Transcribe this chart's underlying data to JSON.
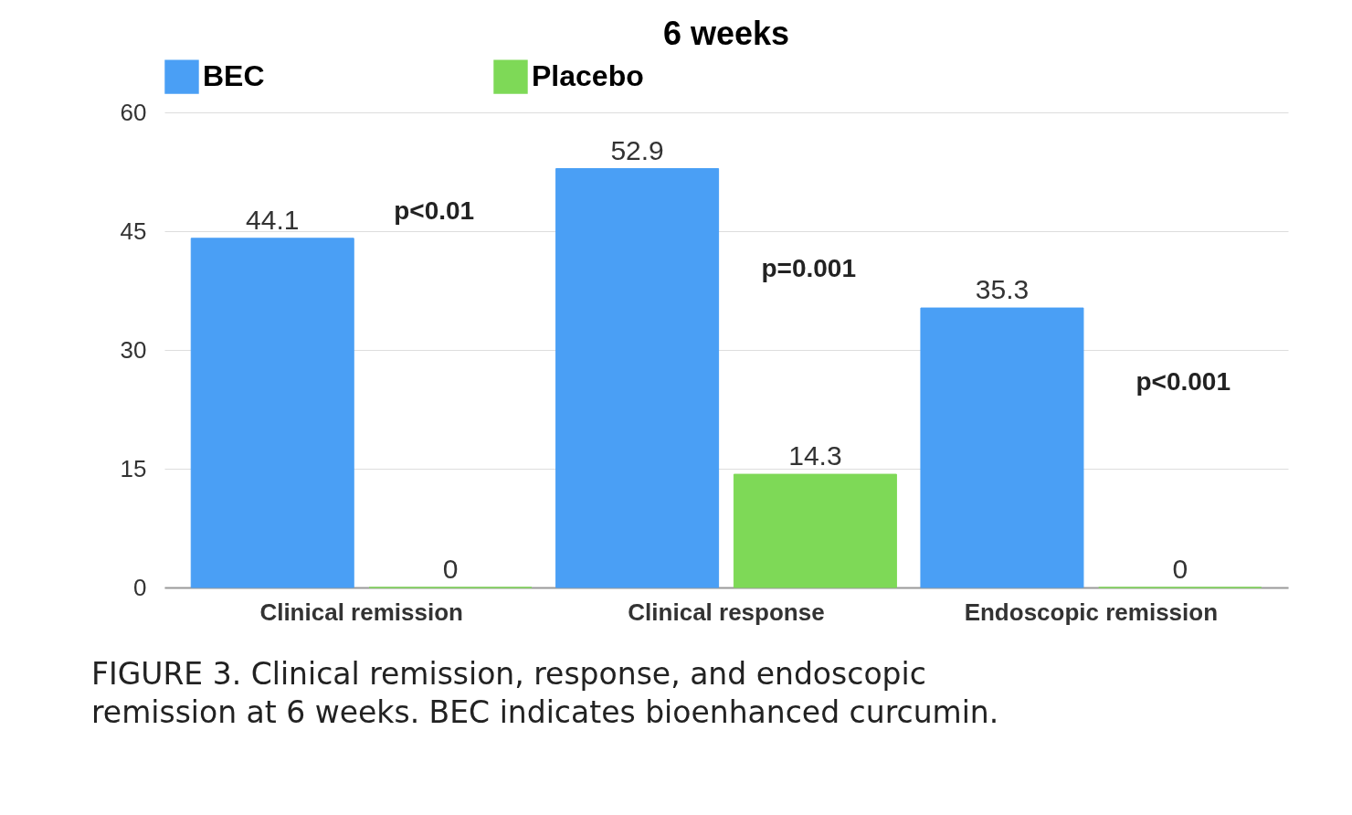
{
  "chart_data": {
    "type": "bar",
    "title": "6 weeks",
    "categories": [
      "Clinical remission",
      "Clinical response",
      "Endoscopic remission"
    ],
    "series": [
      {
        "name": "BEC",
        "color": "#4a9ff5",
        "values": [
          44.1,
          52.9,
          35.3
        ]
      },
      {
        "name": "Placebo",
        "color": "#7ed957",
        "values": [
          0,
          14.3,
          0
        ]
      }
    ],
    "ylim": [
      0,
      60
    ],
    "yticks": [
      0,
      15,
      30,
      45,
      60
    ],
    "grid": "y",
    "legend": "top",
    "data_labels": true,
    "annotations": [
      "p<0.01",
      "p=0.001",
      "p<0.001",
      "FIGURE 3. Clinical remission, response, and endoscopic remission at 6 weeks. BEC indicates bioenhanced curcumin."
    ]
  }
}
